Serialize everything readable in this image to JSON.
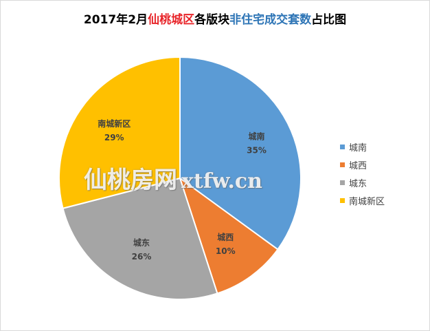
{
  "title": {
    "part1": "2017年2月",
    "part2": "仙桃城区",
    "part3": "各版块",
    "part4": "非住宅成交套数",
    "part5": "占比图"
  },
  "colors": {
    "title_red": "#e8252a",
    "title_blue": "#2e75b6"
  },
  "watermark": {
    "cn": "仙桃房网",
    "url": "xtfw.cn"
  },
  "chart_data": {
    "type": "pie",
    "title": "2017年2月仙桃城区各版块非住宅成交套数占比图",
    "legend_position": "right",
    "start_angle": "12 o'clock, clockwise",
    "slices": [
      {
        "label": "城南",
        "value": 35,
        "display": "35%",
        "color": "#5b9bd5"
      },
      {
        "label": "城西",
        "value": 10,
        "display": "10%",
        "color": "#ed7d31"
      },
      {
        "label": "城东",
        "value": 26,
        "display": "26%",
        "color": "#a5a5a5"
      },
      {
        "label": "南城新区",
        "value": 29,
        "display": "29%",
        "color": "#ffc000"
      }
    ]
  }
}
